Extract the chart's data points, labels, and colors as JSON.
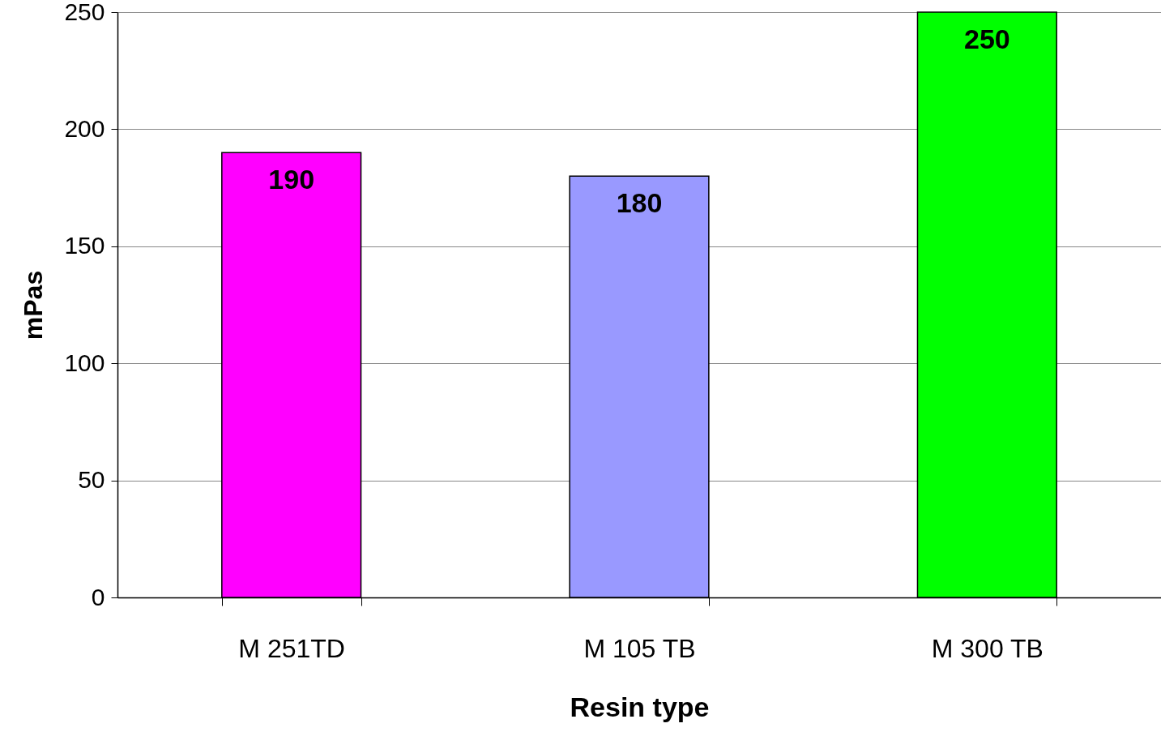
{
  "chart_data": {
    "type": "bar",
    "xlabel": "Resin type",
    "ylabel": "mPas",
    "categories": [
      "M 251TD",
      "M 105 TB",
      "M 300 TB"
    ],
    "values": [
      190,
      180,
      250
    ],
    "colors": [
      "#ff00ff",
      "#9999ff",
      "#00ff00"
    ],
    "ylim": [
      0,
      250
    ],
    "yticks": [
      0,
      50,
      100,
      150,
      200,
      250
    ],
    "grid": "y",
    "data_labels": true
  }
}
